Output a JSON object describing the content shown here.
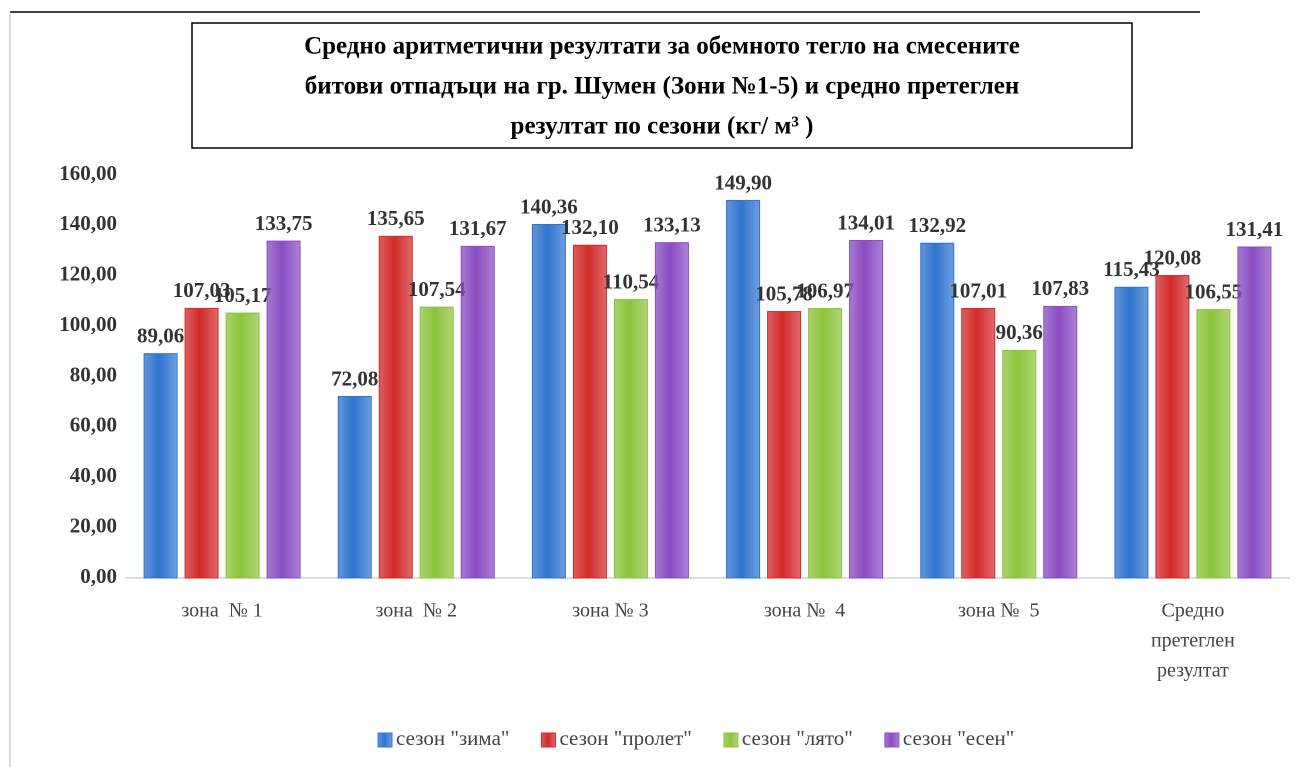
{
  "chart_data": {
    "type": "bar",
    "title": [
      "Средно аритметични резултати за обемното тегло на смесените",
      "битови отпадъци на гр. Шумен (Зони №1-5)  и средно претеглен",
      "резултат по сезони (кг/ м³ )"
    ],
    "categories": [
      [
        "зона  № 1"
      ],
      [
        "зона  № 2"
      ],
      [
        "зона № 3"
      ],
      [
        "зона №  4"
      ],
      [
        "зона №  5"
      ],
      [
        "Средно",
        "претеглен",
        "резултат"
      ]
    ],
    "series": [
      {
        "name": "сезон \"зима\"",
        "color": "#2f74cf",
        "values": [
          89.06,
          72.08,
          140.36,
          149.9,
          132.92,
          115.43
        ],
        "value_labels": [
          "89,06",
          "72,08",
          "140,36",
          "149,90",
          "132,92",
          "115,43"
        ]
      },
      {
        "name": "сезон \"пролет\"",
        "color": "#d22a2a",
        "values": [
          107.03,
          135.65,
          132.1,
          105.78,
          107.01,
          120.08
        ],
        "value_labels": [
          "107,03",
          "135,65",
          "132,10",
          "105,78",
          "107,01",
          "120,08"
        ]
      },
      {
        "name": "сезон \"лято\"",
        "color": "#8cc43c",
        "values": [
          105.17,
          107.54,
          110.54,
          106.97,
          90.36,
          106.55
        ],
        "value_labels": [
          "105,17",
          "107,54",
          "110,54",
          "106,97",
          "90,36",
          "106,55"
        ]
      },
      {
        "name": "сезон \"есен\"",
        "color": "#8a4cc2",
        "values": [
          133.75,
          131.67,
          133.13,
          134.01,
          107.83,
          131.41
        ],
        "value_labels": [
          "133,75",
          "131,67",
          "133,13",
          "134,01",
          "107,83",
          "131,41"
        ]
      }
    ],
    "ylim": [
      0,
      160
    ],
    "yticks": [
      {
        "value": 0,
        "label": "0,00"
      },
      {
        "value": 20,
        "label": "20,00"
      },
      {
        "value": 40,
        "label": "40,00"
      },
      {
        "value": 60,
        "label": "60,00"
      },
      {
        "value": 80,
        "label": "80,00"
      },
      {
        "value": 100,
        "label": "100,00"
      },
      {
        "value": 120,
        "label": "120,00"
      },
      {
        "value": 140,
        "label": "140,00"
      },
      {
        "value": 160,
        "label": "160,00"
      }
    ],
    "legend": "bottom"
  }
}
